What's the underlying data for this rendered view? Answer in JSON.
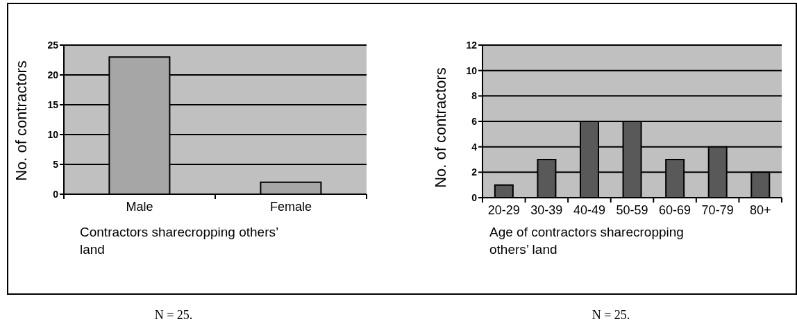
{
  "chart_data": [
    {
      "type": "bar",
      "categories": [
        "Male",
        "Female"
      ],
      "values": [
        23,
        2
      ],
      "color": "#a6a6a6",
      "xlabel": "Contractors sharecropping others’ land",
      "ylabel": "No. of contractors",
      "ylim": [
        0,
        25
      ],
      "yticks": [
        0,
        5,
        10,
        15,
        20,
        25
      ],
      "grid": "y",
      "annotations": [
        "N = 25."
      ]
    },
    {
      "type": "bar",
      "categories": [
        "20-29",
        "30-39",
        "40-49",
        "50-59",
        "60-69",
        "70-79",
        "80+"
      ],
      "values": [
        1,
        3,
        6,
        6,
        3,
        4,
        2
      ],
      "color": "#595959",
      "xlabel": "Age of contractors sharecropping others’ land",
      "ylabel": "No. of contractors",
      "ylim": [
        0,
        12
      ],
      "yticks": [
        0,
        2,
        4,
        6,
        8,
        10,
        12
      ],
      "grid": "y",
      "annotations": [
        "N = 25."
      ]
    }
  ]
}
